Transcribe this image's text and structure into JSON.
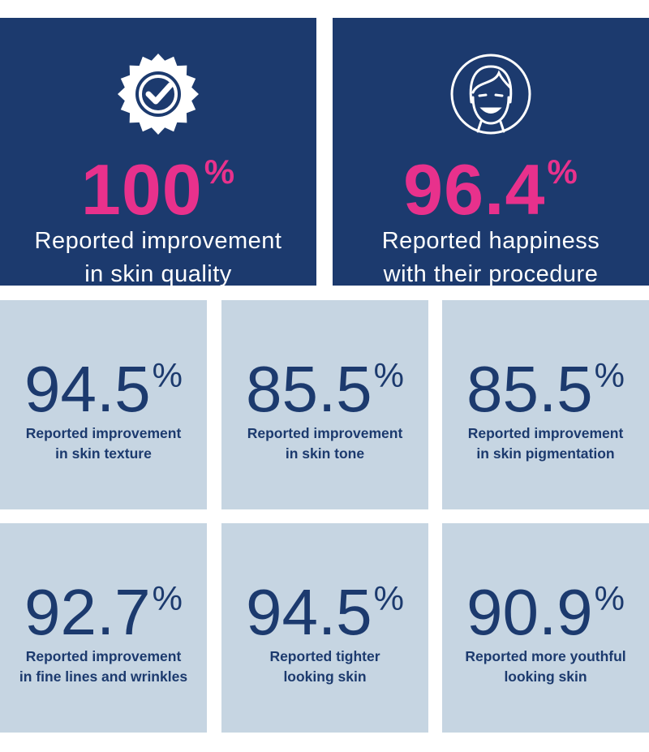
{
  "hero": [
    {
      "value": "100",
      "unit": "%",
      "lines": [
        "Reported improvement",
        "in skin quality"
      ]
    },
    {
      "value": "96.4",
      "unit": "%",
      "lines": [
        "Reported happiness",
        "with their procedure"
      ]
    }
  ],
  "tiles": [
    {
      "value": "94.5",
      "unit": "%",
      "lines": [
        "Reported improvement",
        "in skin texture"
      ]
    },
    {
      "value": "85.5",
      "unit": "%",
      "lines": [
        "Reported improvement",
        "in skin tone"
      ]
    },
    {
      "value": "85.5",
      "unit": "%",
      "lines": [
        "Reported improvement",
        "in skin pigmentation"
      ]
    },
    {
      "value": "92.7",
      "unit": "%",
      "lines": [
        "Reported improvement",
        "in fine lines and wrinkles"
      ]
    },
    {
      "value": "94.5",
      "unit": "%",
      "lines": [
        "Reported tighter",
        "looking skin"
      ]
    },
    {
      "value": "90.9",
      "unit": "%",
      "lines": [
        "Reported more youthful",
        "looking skin"
      ]
    }
  ]
}
